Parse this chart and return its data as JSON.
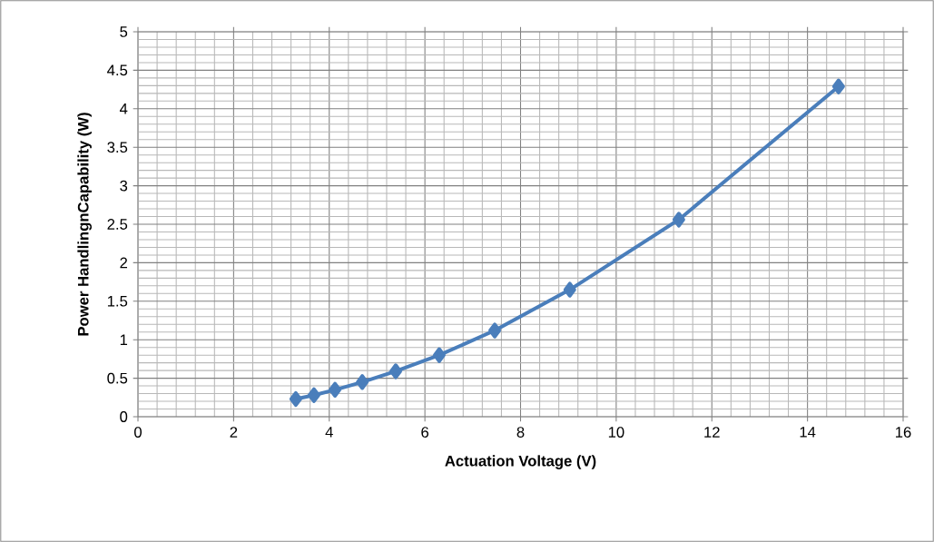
{
  "chart_data": {
    "type": "line",
    "xlabel": "Actuation Voltage (V)",
    "ylabel": "Power HandlingnCapability (W)",
    "x": [
      3.3,
      3.68,
      4.12,
      4.69,
      5.39,
      6.3,
      7.46,
      9.03,
      11.31,
      14.65
    ],
    "series": [
      {
        "color": "#4a7ebb",
        "values": [
          0.23,
          0.28,
          0.35,
          0.45,
          0.59,
          0.8,
          1.12,
          1.65,
          2.56,
          4.29
        ]
      }
    ],
    "xlim": [
      0,
      16
    ],
    "xticks": [
      0,
      2,
      4,
      6,
      8,
      10,
      12,
      14,
      16
    ],
    "ylim": [
      0,
      5
    ],
    "yticks": [
      0,
      0.5,
      1,
      1.5,
      2,
      2.5,
      3,
      3.5,
      4,
      4.5,
      5
    ],
    "grid": true,
    "marker": "diamond",
    "line_style": "solid"
  }
}
